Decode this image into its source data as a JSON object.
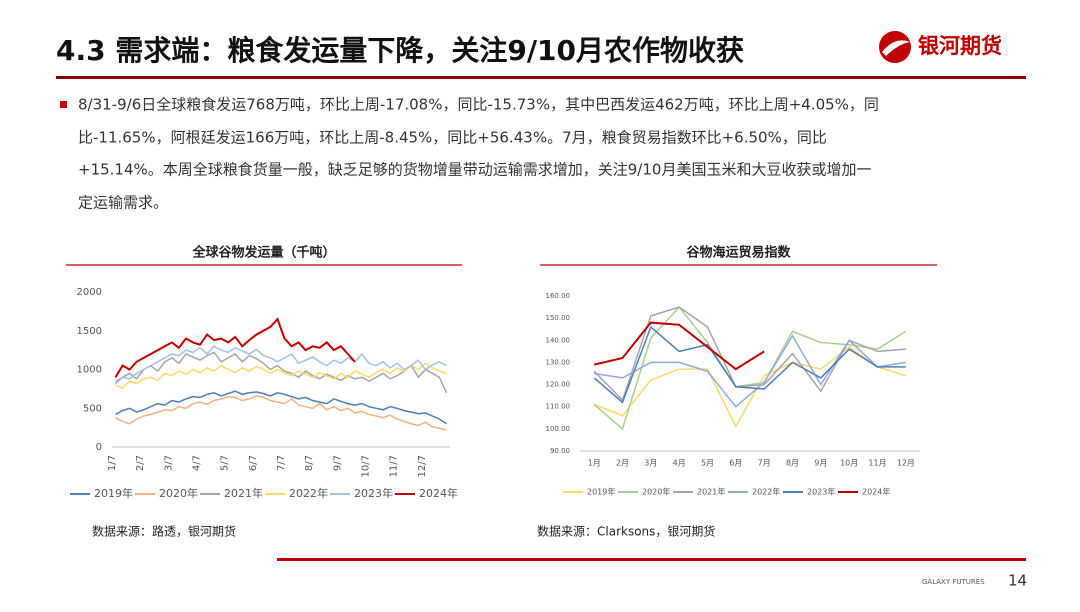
{
  "header": {
    "title": "4.3 需求端：粮食发运量下降，关注9/10月农作物收获",
    "logo_text": "银河期货"
  },
  "bullet": {
    "lines": [
      "8/31-9/6日全球粮食发运768万吨，环比上周-17.08%，同比-15.73%，其中巴西发运462万吨，环比上周+4.05%，同",
      "比-11.65%，阿根廷发运166万吨，环比上周-8.45%，同比+56.43%。7月，粮食贸易指数环比+6.50%，同比",
      "+15.14%。本周全球粮食货量一般，缺乏足够的货物增量带动运输需求增加，关注9/10月美国玉米和大豆收获或增加一",
      "定运输需求。"
    ]
  },
  "sources": [
    "数据来源：路透，银河期货",
    "数据来源：Clarksons，银河期货"
  ],
  "footer": {
    "brand": "GALAXY FUTURES",
    "page": "14"
  },
  "chart_data": [
    {
      "type": "line",
      "title": "全球谷物发运量（千吨）",
      "categories": [
        "1/7",
        null,
        null,
        null,
        "2/7",
        null,
        null,
        null,
        "3/7",
        null,
        null,
        null,
        "4/7",
        null,
        null,
        null,
        "5/7",
        null,
        null,
        null,
        "6/7",
        null,
        null,
        null,
        "7/7",
        null,
        null,
        null,
        "8/7",
        null,
        null,
        null,
        "9/7",
        null,
        null,
        null,
        "10/7",
        null,
        null,
        null,
        "11/7",
        null,
        null,
        null,
        "12/7",
        null,
        null,
        null
      ],
      "ylim": [
        0,
        2000
      ],
      "yticks": [
        0,
        500,
        1000,
        1500,
        2000
      ],
      "series": [
        {
          "name": "2019年",
          "color": "#4a7ebb",
          "values": [
            420,
            470,
            500,
            450,
            480,
            520,
            560,
            540,
            600,
            580,
            620,
            650,
            640,
            680,
            700,
            660,
            690,
            720,
            680,
            700,
            710,
            690,
            660,
            700,
            680,
            650,
            620,
            640,
            600,
            580,
            560,
            620,
            590,
            560,
            540,
            560,
            520,
            500,
            480,
            520,
            500,
            470,
            450,
            430,
            440,
            400,
            360,
            300
          ]
        },
        {
          "name": "2020年",
          "color": "#f4b183",
          "values": [
            380,
            330,
            300,
            360,
            400,
            420,
            450,
            480,
            470,
            520,
            500,
            560,
            580,
            550,
            600,
            620,
            650,
            640,
            600,
            620,
            660,
            640,
            600,
            580,
            560,
            620,
            540,
            520,
            500,
            560,
            480,
            520,
            470,
            500,
            440,
            460,
            420,
            400,
            380,
            410,
            360,
            330,
            300,
            280,
            320,
            260,
            240,
            220
          ]
        },
        {
          "name": "2021年",
          "color": "#a5a5a5",
          "values": [
            820,
            900,
            950,
            880,
            1000,
            1050,
            980,
            1100,
            1150,
            1080,
            1200,
            1160,
            1120,
            1180,
            1220,
            1100,
            1150,
            1200,
            1100,
            1180,
            1140,
            1080,
            1000,
            1050,
            980,
            950,
            900,
            980,
            920,
            880,
            940,
            900,
            860,
            920,
            880,
            900,
            850,
            900,
            950,
            880,
            920,
            980,
            1050,
            900,
            1000,
            950,
            900,
            700
          ]
        },
        {
          "name": "2022年",
          "color": "#ffd966",
          "values": [
            800,
            760,
            850,
            820,
            880,
            900,
            860,
            950,
            920,
            980,
            940,
            1000,
            960,
            1020,
            980,
            1050,
            1000,
            960,
            1020,
            980,
            1040,
            1000,
            950,
            1000,
            960,
            920,
            980,
            940,
            900,
            960,
            920,
            880,
            950,
            900,
            980,
            940,
            900,
            960,
            1000,
            950,
            1020,
            980,
            1050,
            1000,
            1080,
            1020,
            980,
            950
          ]
        },
        {
          "name": "2023年",
          "color": "#9dc3e6",
          "values": [
            850,
            900,
            880,
            950,
            1000,
            1050,
            1100,
            1150,
            1200,
            1180,
            1250,
            1220,
            1280,
            1200,
            1300,
            1250,
            1220,
            1280,
            1240,
            1200,
            1260,
            1180,
            1150,
            1100,
            1150,
            1200,
            1080,
            1120,
            1160,
            1100,
            1050,
            1120,
            1080,
            1150,
            1100,
            1200,
            1080,
            1050,
            1100,
            1020,
            1080,
            1000,
            1050,
            1120,
            1000,
            1060,
            1100,
            1050
          ]
        },
        {
          "name": "2024年",
          "color": "#c00000",
          "values": [
            900,
            1050,
            1000,
            1100,
            1150,
            1200,
            1250,
            1300,
            1350,
            1280,
            1400,
            1350,
            1320,
            1450,
            1380,
            1400,
            1350,
            1420,
            1300,
            1380,
            1450,
            1500,
            1550,
            1650,
            1400,
            1300,
            1350,
            1250,
            1300,
            1280,
            1350,
            1250,
            1300,
            1200,
            1100,
            null,
            null,
            null,
            null,
            null,
            null,
            null,
            null,
            null,
            null,
            null,
            null,
            null
          ]
        }
      ]
    },
    {
      "type": "line",
      "title": "谷物海运贸易指数",
      "categories": [
        "1月",
        "2月",
        "3月",
        "4月",
        "5月",
        "6月",
        "7月",
        "8月",
        "9月",
        "10月",
        "11月",
        "12月"
      ],
      "ylim": [
        90,
        160
      ],
      "yticks": [
        {
          "value": 90,
          "label": "90.00"
        },
        {
          "value": 100,
          "label": "100.00"
        },
        {
          "value": 110,
          "label": "110.00"
        },
        {
          "value": 120,
          "label": "120.00"
        },
        {
          "value": 130,
          "label": "130.00"
        },
        {
          "value": 140,
          "label": "140.00"
        },
        {
          "value": 150,
          "label": "150.00"
        },
        {
          "value": 160,
          "label": "160.00"
        }
      ],
      "series": [
        {
          "name": "2019年",
          "color": "#ffd966",
          "values": [
            111,
            106,
            122,
            127,
            127,
            101,
            124,
            130,
            127,
            137,
            128,
            124
          ]
        },
        {
          "name": "2020年",
          "color": "#a9d18e",
          "values": [
            111,
            100,
            141,
            155,
            139,
            119,
            121,
            144,
            139,
            138,
            136,
            144
          ]
        },
        {
          "name": "2021年",
          "color": "#a5a5a5",
          "values": [
            126,
            113,
            151,
            155,
            146,
            119,
            120,
            134,
            117,
            140,
            135,
            136
          ]
        },
        {
          "name": "2022年",
          "color": "#8faadc",
          "values": [
            125,
            123,
            130,
            130,
            126,
            110,
            121,
            142,
            120,
            140,
            128,
            130
          ]
        },
        {
          "name": "2023年",
          "color": "#4a7ebb",
          "values": [
            123,
            112,
            146,
            135,
            138,
            119,
            118,
            130,
            123,
            136,
            128,
            128
          ]
        },
        {
          "name": "2024年",
          "color": "#c00000",
          "values": [
            129,
            132,
            148,
            147,
            137,
            127,
            135,
            null,
            null,
            null,
            null,
            null
          ]
        }
      ]
    }
  ]
}
